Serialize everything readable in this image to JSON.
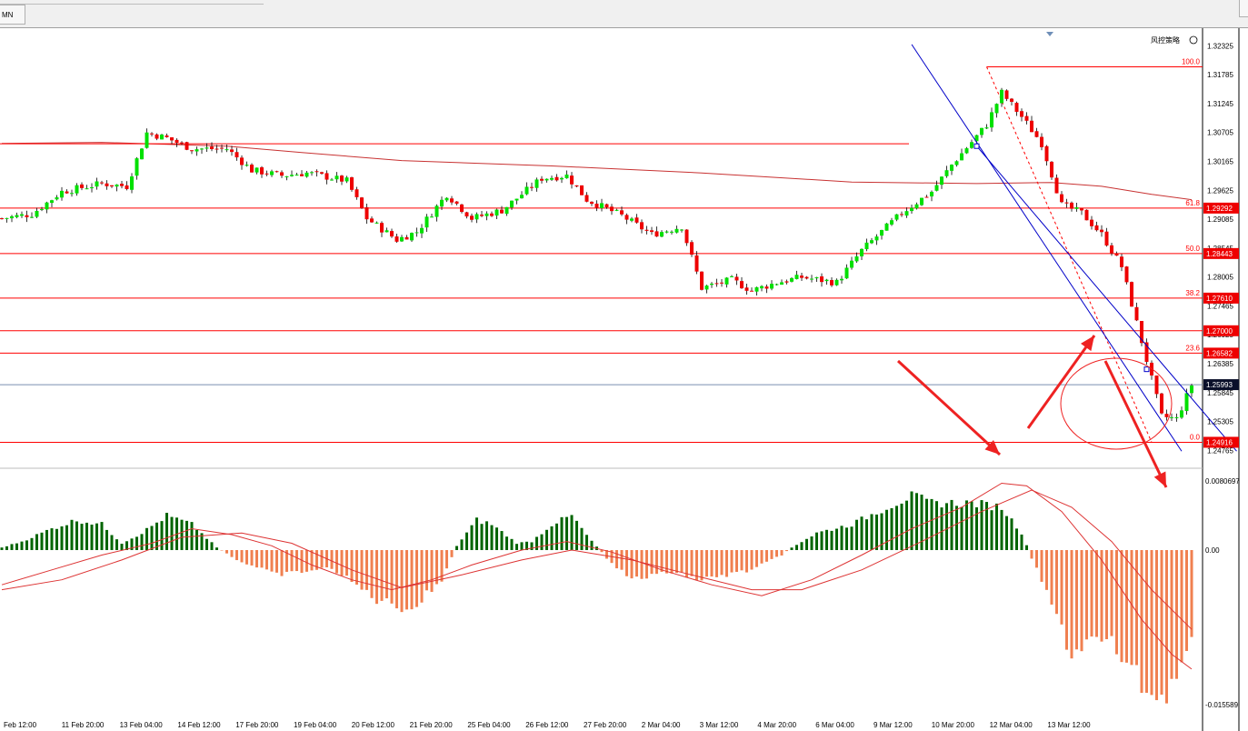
{
  "tab": {
    "label": "MN"
  },
  "indicator_label": "风控策略",
  "colors": {
    "up": "#00e000",
    "down": "#ee0000",
    "ma": "#c83232",
    "fib": "#ff0000",
    "channel": "#0000c8",
    "arrow": "#ee2222",
    "hist_pos": "#006400",
    "hist_neg": "#f08050",
    "signal": "#dd3333",
    "current": "#7a8fb0"
  },
  "chart_data": {
    "type": "candlestick",
    "symbol_timeframe": "",
    "price_axis_ticks": [
      "1.32325",
      "1.31785",
      "1.31245",
      "1.30705",
      "1.30165",
      "1.29625",
      "1.29085",
      "1.28545",
      "1.28005",
      "1.27465",
      "1.26925",
      "1.26385",
      "1.25845",
      "1.25305",
      "1.24765"
    ],
    "ylim": [
      1.2455,
      1.3245
    ],
    "time_axis_labels": [
      "Feb 12:00",
      "11 Feb 20:00",
      "13 Feb 04:00",
      "14 Feb 12:00",
      "17 Feb 20:00",
      "19 Feb 04:00",
      "20 Feb 12:00",
      "21 Feb 20:00",
      "25 Feb 04:00",
      "26 Feb 12:00",
      "27 Feb 20:00",
      "2 Mar 04:00",
      "3 Mar 12:00",
      "4 Mar 20:00",
      "6 Mar 04:00",
      "9 Mar 12:00",
      "10 Mar 20:00",
      "12 Mar 04:00",
      "13 Mar 12:00"
    ],
    "fibonacci": {
      "levels": [
        {
          "ratio": "100.0",
          "price": 1.31932,
          "label": ""
        },
        {
          "ratio": "61.8",
          "price": 1.29292,
          "label": "1.29292"
        },
        {
          "ratio": "50.0",
          "price": 1.28443,
          "label": "1.28443"
        },
        {
          "ratio": "38.2",
          "price": 1.2761,
          "label": "1.27610"
        },
        {
          "ratio": "23.6",
          "price": 1.26582,
          "label": "1.26582"
        },
        {
          "ratio": "0.0",
          "price": 1.24916,
          "label": "1.24916"
        }
      ],
      "start_bar": 197,
      "end_bar": 230
    },
    "horizontal_lines": [
      {
        "price": 1.27,
        "label": "1.27000"
      },
      {
        "price": 1.30495,
        "label": ""
      }
    ],
    "current_price": {
      "price": 1.25993,
      "label": "1.25993"
    },
    "moving_average": [
      {
        "bar": 0,
        "price": 1.305
      },
      {
        "bar": 20,
        "price": 1.3052
      },
      {
        "bar": 45,
        "price": 1.3045
      },
      {
        "bar": 60,
        "price": 1.3033
      },
      {
        "bar": 80,
        "price": 1.3018
      },
      {
        "bar": 110,
        "price": 1.3008
      },
      {
        "bar": 140,
        "price": 1.2995
      },
      {
        "bar": 170,
        "price": 1.2978
      },
      {
        "bar": 195,
        "price": 1.2975
      },
      {
        "bar": 210,
        "price": 1.2977
      },
      {
        "bar": 220,
        "price": 1.297
      },
      {
        "bar": 230,
        "price": 1.2955
      },
      {
        "bar": 238,
        "price": 1.2945
      }
    ],
    "channel": [
      {
        "x1_bar": 182,
        "y1": 1.3235,
        "x2_bar": 236,
        "y2": 1.2475
      },
      {
        "x1_bar": 195,
        "y1": 1.3045,
        "x2_bar": 247,
        "y2": 1.2475
      }
    ],
    "candle_anchors": [
      {
        "bar": 0,
        "close": 1.291
      },
      {
        "bar": 6,
        "close": 1.2918
      },
      {
        "bar": 12,
        "close": 1.296
      },
      {
        "bar": 20,
        "close": 1.2975
      },
      {
        "bar": 25,
        "close": 1.297
      },
      {
        "bar": 29,
        "close": 1.307
      },
      {
        "bar": 33,
        "close": 1.306
      },
      {
        "bar": 38,
        "close": 1.304
      },
      {
        "bar": 45,
        "close": 1.304
      },
      {
        "bar": 50,
        "close": 1.3
      },
      {
        "bar": 56,
        "close": 1.299
      },
      {
        "bar": 61,
        "close": 1.2995
      },
      {
        "bar": 69,
        "close": 1.298
      },
      {
        "bar": 73,
        "close": 1.291
      },
      {
        "bar": 79,
        "close": 1.287
      },
      {
        "bar": 83,
        "close": 1.2885
      },
      {
        "bar": 89,
        "close": 1.2955
      },
      {
        "bar": 94,
        "close": 1.291
      },
      {
        "bar": 100,
        "close": 1.2925
      },
      {
        "bar": 108,
        "close": 1.2985
      },
      {
        "bar": 113,
        "close": 1.299
      },
      {
        "bar": 117,
        "close": 1.2945
      },
      {
        "bar": 124,
        "close": 1.2915
      },
      {
        "bar": 130,
        "close": 1.288
      },
      {
        "bar": 136,
        "close": 1.2895
      },
      {
        "bar": 140,
        "close": 1.278
      },
      {
        "bar": 146,
        "close": 1.2795
      },
      {
        "bar": 150,
        "close": 1.2775
      },
      {
        "bar": 155,
        "close": 1.279
      },
      {
        "bar": 160,
        "close": 1.28
      },
      {
        "bar": 167,
        "close": 1.279
      },
      {
        "bar": 172,
        "close": 1.285
      },
      {
        "bar": 180,
        "close": 1.292
      },
      {
        "bar": 186,
        "close": 1.296
      },
      {
        "bar": 190,
        "close": 1.301
      },
      {
        "bar": 197,
        "close": 1.3085
      },
      {
        "bar": 200,
        "close": 1.3145
      },
      {
        "bar": 204,
        "close": 1.31
      },
      {
        "bar": 208,
        "close": 1.305
      },
      {
        "bar": 212,
        "close": 1.2935
      },
      {
        "bar": 216,
        "close": 1.292
      },
      {
        "bar": 220,
        "close": 1.288
      },
      {
        "bar": 224,
        "close": 1.282
      },
      {
        "bar": 228,
        "close": 1.268
      },
      {
        "bar": 232,
        "close": 1.254
      },
      {
        "bar": 235,
        "close": 1.2535
      },
      {
        "bar": 238,
        "close": 1.2599
      }
    ],
    "macd": {
      "axis_labels": [
        "0.0080697",
        "0.00",
        "-0.015589"
      ],
      "ylim": [
        -0.015589,
        0.0080697
      ],
      "histogram_anchors": [
        {
          "bar": 0,
          "value": 0.0003
        },
        {
          "bar": 4,
          "value": 0.001
        },
        {
          "bar": 10,
          "value": 0.0025
        },
        {
          "bar": 15,
          "value": 0.0035
        },
        {
          "bar": 20,
          "value": 0.003
        },
        {
          "bar": 24,
          "value": 0.0008
        },
        {
          "bar": 28,
          "value": 0.002
        },
        {
          "bar": 33,
          "value": 0.004
        },
        {
          "bar": 38,
          "value": 0.003
        },
        {
          "bar": 43,
          "value": 0.0003
        },
        {
          "bar": 47,
          "value": -0.001
        },
        {
          "bar": 55,
          "value": -0.0025
        },
        {
          "bar": 66,
          "value": -0.0018
        },
        {
          "bar": 75,
          "value": -0.005
        },
        {
          "bar": 82,
          "value": -0.006
        },
        {
          "bar": 88,
          "value": -0.003
        },
        {
          "bar": 91,
          "value": 0.0005
        },
        {
          "bar": 95,
          "value": 0.0035
        },
        {
          "bar": 98,
          "value": 0.003
        },
        {
          "bar": 103,
          "value": 0.0008
        },
        {
          "bar": 106,
          "value": 0.001
        },
        {
          "bar": 110,
          "value": 0.003
        },
        {
          "bar": 114,
          "value": 0.004
        },
        {
          "bar": 118,
          "value": 0.001
        },
        {
          "bar": 121,
          "value": -0.0008
        },
        {
          "bar": 126,
          "value": -0.003
        },
        {
          "bar": 134,
          "value": -0.0022
        },
        {
          "bar": 140,
          "value": -0.003
        },
        {
          "bar": 150,
          "value": -0.002
        },
        {
          "bar": 156,
          "value": -0.0005
        },
        {
          "bar": 158,
          "value": 0.0003
        },
        {
          "bar": 163,
          "value": 0.002
        },
        {
          "bar": 170,
          "value": 0.003
        },
        {
          "bar": 177,
          "value": 0.005
        },
        {
          "bar": 182,
          "value": 0.0063
        },
        {
          "bar": 186,
          "value": 0.0055
        },
        {
          "bar": 194,
          "value": 0.0055
        },
        {
          "bar": 200,
          "value": 0.005
        },
        {
          "bar": 204,
          "value": 0.002
        },
        {
          "bar": 206,
          "value": -0.0008
        },
        {
          "bar": 210,
          "value": -0.0055
        },
        {
          "bar": 214,
          "value": -0.0105
        },
        {
          "bar": 218,
          "value": -0.009
        },
        {
          "bar": 222,
          "value": -0.0095
        },
        {
          "bar": 228,
          "value": -0.0135
        },
        {
          "bar": 232,
          "value": -0.015
        },
        {
          "bar": 235,
          "value": -0.0125
        },
        {
          "bar": 238,
          "value": -0.0095
        }
      ],
      "signal_lines": [
        [
          {
            "bar": 0,
            "value": -0.0035
          },
          {
            "bar": 10,
            "value": -0.002
          },
          {
            "bar": 20,
            "value": -0.0005
          },
          {
            "bar": 30,
            "value": 0.0008
          },
          {
            "bar": 38,
            "value": 0.0025
          },
          {
            "bar": 46,
            "value": 0.0018
          },
          {
            "bar": 54,
            "value": 0.0005
          },
          {
            "bar": 62,
            "value": -0.0015
          },
          {
            "bar": 70,
            "value": -0.003
          },
          {
            "bar": 78,
            "value": -0.004
          },
          {
            "bar": 86,
            "value": -0.003
          },
          {
            "bar": 94,
            "value": -0.0015
          },
          {
            "bar": 104,
            "value": 0.0
          },
          {
            "bar": 113,
            "value": 0.001
          },
          {
            "bar": 122,
            "value": -0.0002
          },
          {
            "bar": 132,
            "value": -0.002
          },
          {
            "bar": 142,
            "value": -0.0035
          },
          {
            "bar": 152,
            "value": -0.0046
          },
          {
            "bar": 162,
            "value": -0.003
          },
          {
            "bar": 172,
            "value": -0.0005
          },
          {
            "bar": 182,
            "value": 0.0025
          },
          {
            "bar": 192,
            "value": 0.005
          },
          {
            "bar": 200,
            "value": 0.0078
          },
          {
            "bar": 205,
            "value": 0.0075
          },
          {
            "bar": 212,
            "value": 0.0045
          },
          {
            "bar": 220,
            "value": -0.001
          },
          {
            "bar": 228,
            "value": -0.007
          },
          {
            "bar": 234,
            "value": -0.0105
          },
          {
            "bar": 238,
            "value": -0.012
          }
        ],
        [
          {
            "bar": 0,
            "value": -0.004
          },
          {
            "bar": 12,
            "value": -0.003
          },
          {
            "bar": 24,
            "value": -0.001
          },
          {
            "bar": 36,
            "value": 0.0015
          },
          {
            "bar": 48,
            "value": 0.002
          },
          {
            "bar": 58,
            "value": 0.0008
          },
          {
            "bar": 70,
            "value": -0.002
          },
          {
            "bar": 80,
            "value": -0.0038
          },
          {
            "bar": 92,
            "value": -0.0025
          },
          {
            "bar": 104,
            "value": -0.001
          },
          {
            "bar": 114,
            "value": 0.0
          },
          {
            "bar": 126,
            "value": -0.001
          },
          {
            "bar": 138,
            "value": -0.0025
          },
          {
            "bar": 150,
            "value": -0.004
          },
          {
            "bar": 160,
            "value": -0.004
          },
          {
            "bar": 172,
            "value": -0.002
          },
          {
            "bar": 184,
            "value": 0.001
          },
          {
            "bar": 196,
            "value": 0.0045
          },
          {
            "bar": 206,
            "value": 0.007
          },
          {
            "bar": 214,
            "value": 0.005
          },
          {
            "bar": 222,
            "value": 0.001
          },
          {
            "bar": 230,
            "value": -0.004
          },
          {
            "bar": 238,
            "value": -0.008
          }
        ]
      ]
    }
  }
}
